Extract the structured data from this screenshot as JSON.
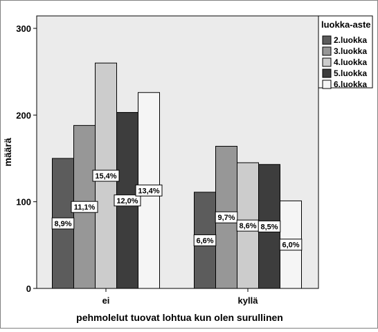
{
  "chart_data": {
    "type": "bar",
    "xlabel": "pehmolelut tuovat lohtua kun olen surullinen",
    "ylabel": "määrä",
    "categories": [
      "ei",
      "kyllä"
    ],
    "ylim": [
      0,
      300
    ],
    "yticks": [
      0,
      100,
      200,
      300
    ],
    "grid": false,
    "legend_position": "right",
    "legend_title": "luokka-aste",
    "series": [
      {
        "name": "2.luokka",
        "color": "#5c5c5c",
        "values": [
          150,
          111
        ],
        "labels": [
          "8,9%",
          "6,6%"
        ]
      },
      {
        "name": "3.luokka",
        "color": "#979797",
        "values": [
          188,
          164
        ],
        "labels": [
          "11,1%",
          "9,7%"
        ]
      },
      {
        "name": "4.luokka",
        "color": "#cccccc",
        "values": [
          260,
          145
        ],
        "labels": [
          "15,4%",
          "8,6%"
        ]
      },
      {
        "name": "5.luokka",
        "color": "#3d3d3d",
        "values": [
          203,
          143
        ],
        "labels": [
          "12,0%",
          "8,5%"
        ]
      },
      {
        "name": "6.luokka",
        "color": "#f5f5f5",
        "values": [
          226,
          101
        ],
        "labels": [
          "13,4%",
          "6,0%"
        ]
      }
    ],
    "colors": {
      "plot_background": "#ebebeb",
      "bar_stroke": "#000000"
    }
  }
}
